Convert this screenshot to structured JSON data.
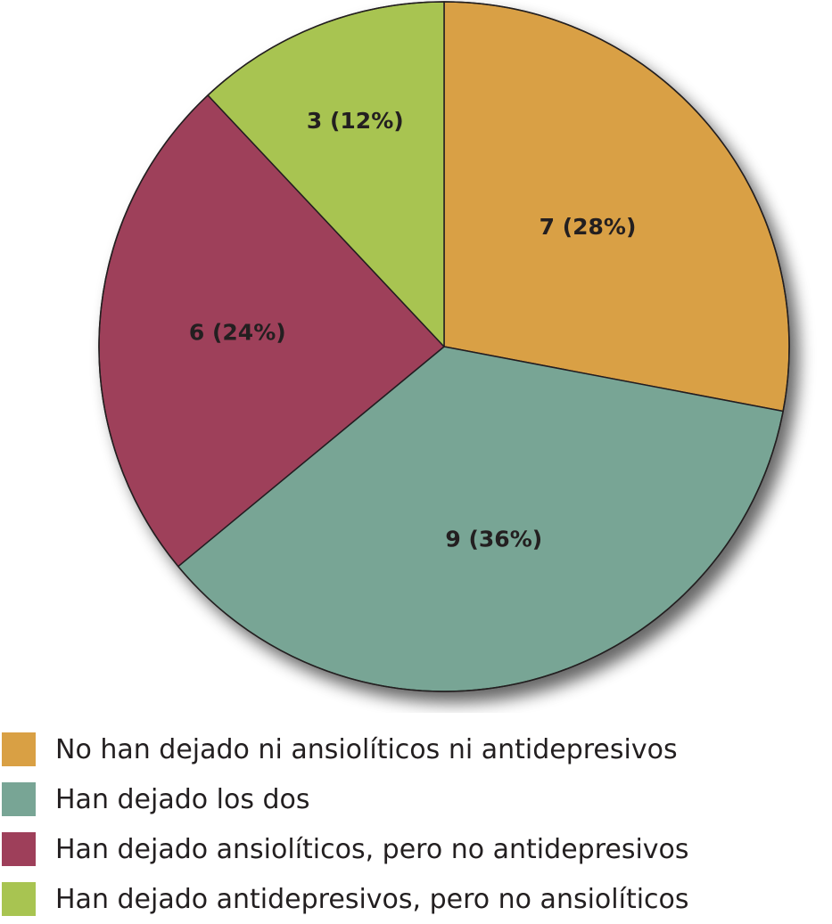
{
  "chart_data": {
    "type": "pie",
    "start_angle_deg": 0,
    "direction": "clockwise",
    "slices": [
      {
        "name": "No han dejado ni ansiolíticos ni antidepresivos",
        "value": 7,
        "label": "7 (28%)",
        "color": "#d9a044"
      },
      {
        "name": "Han dejado los dos",
        "value": 9,
        "label": "9 (36%)",
        "color": "#78a595"
      },
      {
        "name": "Han dejado ansiolíticos, pero no antidepresivos",
        "value": 6,
        "label": "6 (24%)",
        "color": "#9e3f5a"
      },
      {
        "name": "Han dejado antidepresivos, pero no ansiolíticos",
        "value": 3,
        "label": "3 (12%)",
        "color": "#a8c451"
      }
    ],
    "legend_position": "bottom"
  }
}
